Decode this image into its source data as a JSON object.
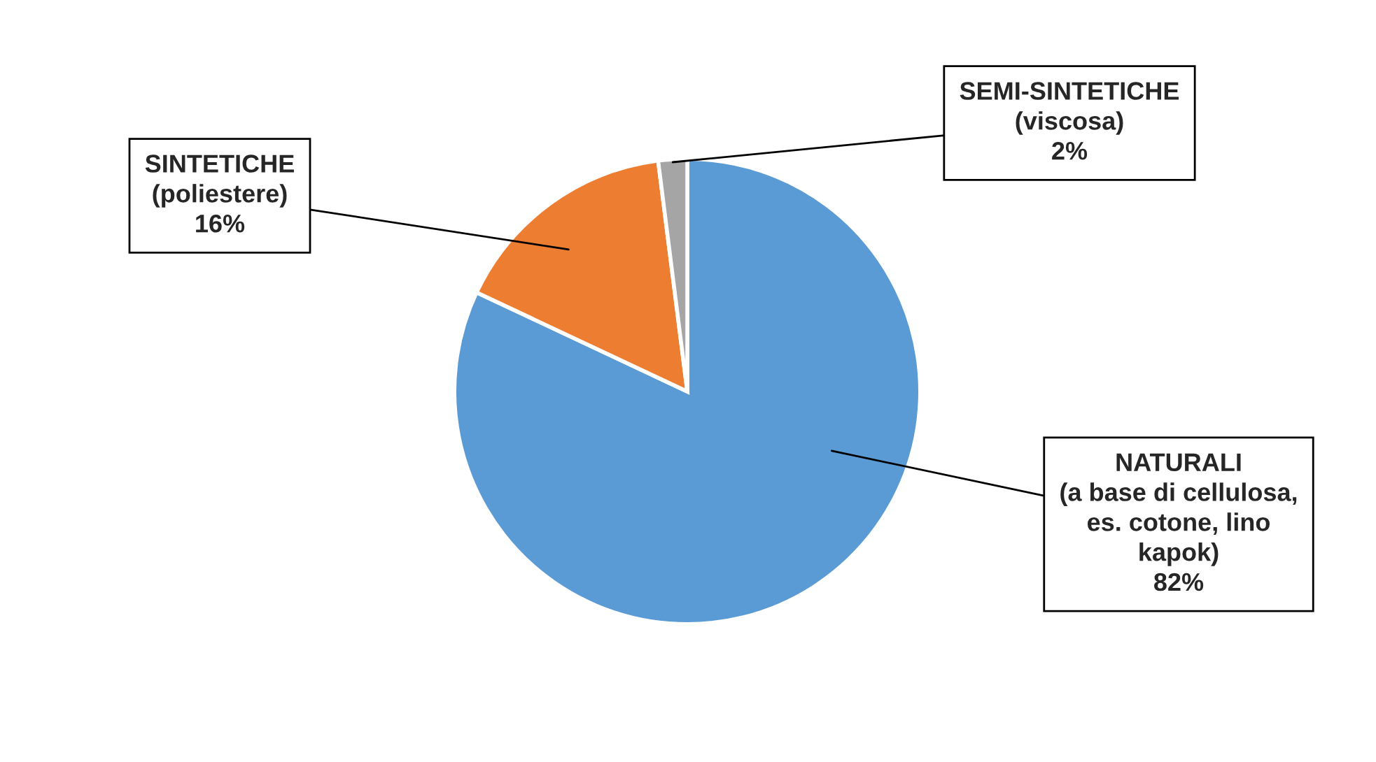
{
  "chart_data": {
    "type": "pie",
    "categories": [
      "NATURALI\n(a base di cellulosa,\nes. cotone, lino\nkapok)",
      "SINTETICHE\n(poliestere)",
      "SEMI-SINTETICHE\n(viscosa)"
    ],
    "values": [
      82,
      16,
      2
    ],
    "value_labels": [
      "82%",
      "16%",
      "2%"
    ],
    "colors": [
      "#5b9bd5",
      "#ed7d31",
      "#a5a5a5"
    ],
    "legend": false
  }
}
